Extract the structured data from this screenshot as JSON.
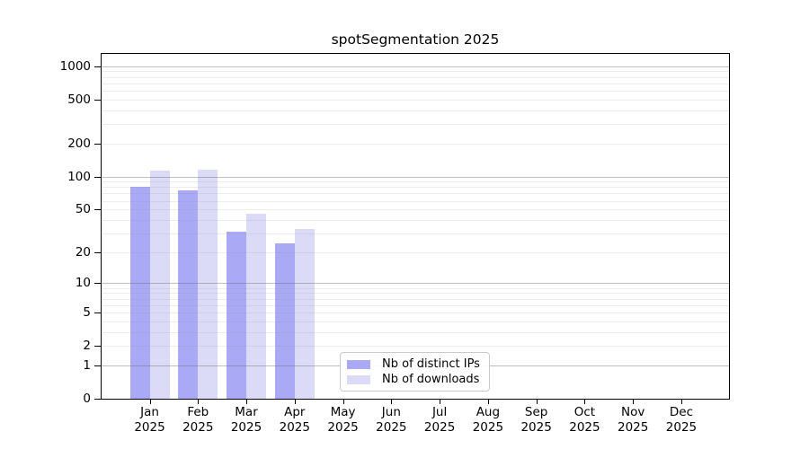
{
  "chart_data": {
    "type": "bar",
    "title": "spotSegmentation 2025",
    "categories": [
      "Jan",
      "Feb",
      "Mar",
      "Apr",
      "May",
      "Jun",
      "Jul",
      "Aug",
      "Sep",
      "Oct",
      "Nov",
      "Dec"
    ],
    "year_label": "2025",
    "series": [
      {
        "name": "Nb of distinct IPs",
        "color": "#a9a9f6",
        "values": [
          80,
          75,
          31,
          24,
          0,
          0,
          0,
          0,
          0,
          0,
          0,
          0
        ]
      },
      {
        "name": "Nb of downloads",
        "color": "#dbdbf8",
        "values": [
          113,
          116,
          46,
          33,
          0,
          0,
          0,
          0,
          0,
          0,
          0,
          0
        ]
      }
    ],
    "yscale": "log10(1+x)",
    "ylim": [
      0,
      1288
    ],
    "yticks": [
      {
        "value": 0,
        "label": "0"
      },
      {
        "value": 1,
        "label": "1"
      },
      {
        "value": 2,
        "label": "2"
      },
      {
        "value": 5,
        "label": "5"
      },
      {
        "value": 10,
        "label": "10"
      },
      {
        "value": 20,
        "label": "20"
      },
      {
        "value": 50,
        "label": "50"
      },
      {
        "value": 100,
        "label": "100"
      },
      {
        "value": 200,
        "label": "200"
      },
      {
        "value": 500,
        "label": "500"
      },
      {
        "value": 1000,
        "label": "1000"
      }
    ],
    "grid": {
      "major_values": [
        1,
        10,
        100,
        1000
      ],
      "minor_values": [
        2,
        3,
        4,
        5,
        6,
        7,
        8,
        9,
        20,
        30,
        40,
        50,
        60,
        70,
        80,
        90,
        200,
        300,
        400,
        500,
        600,
        700,
        800,
        900
      ]
    },
    "legend_position": "lower center",
    "colors": {
      "spine": "#000000",
      "grid_major": "#c2c2c2",
      "grid_minor": "#e9e9e9",
      "text": "#000000"
    }
  }
}
